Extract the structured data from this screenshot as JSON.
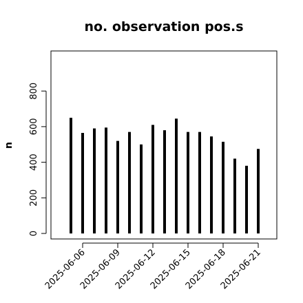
{
  "chart_data": {
    "type": "bar",
    "title": "no. observation pos.s",
    "xlabel": "",
    "ylabel": "n",
    "ylim": [
      0,
      1000
    ],
    "yticks": [
      0,
      200,
      400,
      600,
      800
    ],
    "x": [
      "2025-06-05",
      "2025-06-06",
      "2025-06-07",
      "2025-06-08",
      "2025-06-09",
      "2025-06-10",
      "2025-06-11",
      "2025-06-12",
      "2025-06-13",
      "2025-06-14",
      "2025-06-15",
      "2025-06-16",
      "2025-06-17",
      "2025-06-18",
      "2025-06-19",
      "2025-06-20",
      "2025-06-21"
    ],
    "values": [
      650,
      565,
      590,
      595,
      520,
      570,
      500,
      610,
      580,
      645,
      570,
      570,
      545,
      515,
      420,
      380,
      475
    ],
    "xtick_labels": [
      {
        "label": "2025-06-06",
        "color": "#000000"
      },
      {
        "label": "2025-06-09",
        "color": "#000000"
      },
      {
        "label": "2025-06-12",
        "color": "#228B22"
      },
      {
        "label": "2025-06-15",
        "color": "#000000"
      },
      {
        "label": "2025-06-18",
        "color": "#000000"
      },
      {
        "label": "2025-06-21",
        "color": "#000000"
      }
    ],
    "bar_color": "#000000",
    "grid": false
  }
}
